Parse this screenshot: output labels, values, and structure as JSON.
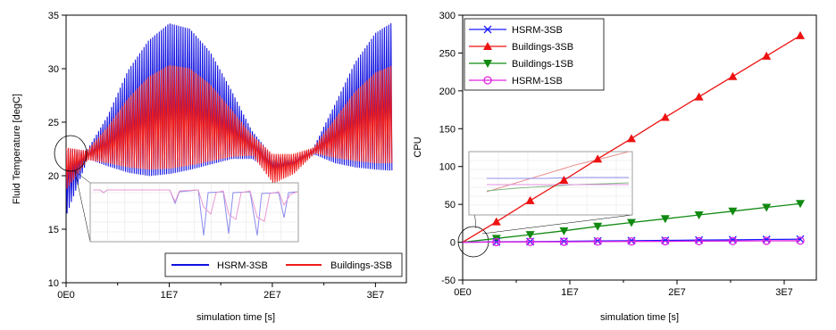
{
  "chart_data": [
    {
      "type": "line",
      "title": "",
      "xlabel": "simulation time [s]",
      "ylabel": "Fluid Temperature [degC]",
      "xlim": [
        0,
        33000000
      ],
      "ylim": [
        10,
        35
      ],
      "x_ticks": [
        "0E0",
        "1E7",
        "2E7",
        "3E7"
      ],
      "x_tick_values": [
        0,
        10000000,
        20000000,
        30000000
      ],
      "y_ticks": [
        "10",
        "15",
        "20",
        "25",
        "30",
        "35"
      ],
      "y_tick_values": [
        10,
        15,
        20,
        25,
        30,
        35
      ],
      "legend_position": "bottom-right",
      "grid": false,
      "series": [
        {
          "name": "HSRM-3SB",
          "color": "#1010e0",
          "envelope": {
            "x": [
              0,
              2000000,
              4000000,
              6000000,
              8000000,
              10000000,
              12000000,
              14000000,
              16000000,
              18000000,
              20000000,
              22000000,
              24000000,
              26000000,
              28000000,
              30000000,
              31500000
            ],
            "upper": [
              22.5,
              22.3,
              25.5,
              29.8,
              32.6,
              34.2,
              33.7,
              31.5,
              28.0,
              24.2,
              21.8,
              21.7,
              22.6,
              26.5,
              30.5,
              33.3,
              34.2
            ],
            "lower": [
              16.5,
              21.6,
              20.9,
              20.3,
              20.0,
              20.2,
              20.6,
              21.1,
              21.6,
              21.6,
              20.2,
              20.8,
              22.0,
              21.2,
              20.8,
              20.6,
              20.5
            ]
          }
        },
        {
          "name": "Buildings-3SB",
          "color": "#ee1c1c",
          "envelope": {
            "x": [
              0,
              2000000,
              4000000,
              6000000,
              8000000,
              10000000,
              12000000,
              14000000,
              16000000,
              18000000,
              20000000,
              22000000,
              24000000,
              26000000,
              28000000,
              30000000,
              31500000
            ],
            "upper": [
              22.6,
              22.3,
              24.5,
              27.2,
              29.2,
              30.3,
              30.0,
              28.5,
              26.2,
              23.8,
              22.0,
              22.0,
              22.6,
              25.2,
              27.8,
              29.6,
              30.2
            ],
            "lower": [
              18.8,
              21.5,
              21.2,
              20.8,
              20.6,
              20.7,
              21.0,
              21.4,
              21.8,
              21.9,
              19.3,
              20.2,
              22.1,
              21.7,
              21.4,
              21.2,
              21.2
            ]
          }
        }
      ]
    },
    {
      "type": "line",
      "title": "",
      "xlabel": "simulation time [s]",
      "ylabel": "CPU",
      "xlim": [
        0,
        33000000
      ],
      "ylim": [
        -50,
        300
      ],
      "x_ticks": [
        "0E0",
        "1E7",
        "2E7",
        "3E7"
      ],
      "x_tick_values": [
        0,
        10000000,
        20000000,
        30000000
      ],
      "y_ticks": [
        "-50",
        "0",
        "50",
        "100",
        "150",
        "200",
        "250",
        "300"
      ],
      "y_tick_values": [
        -50,
        0,
        50,
        100,
        150,
        200,
        250,
        300
      ],
      "legend_position": "top-left",
      "grid": false,
      "x": [
        0,
        3150000,
        6300000,
        9450000,
        12600000,
        15750000,
        18900000,
        22050000,
        25200000,
        28350000,
        31500000
      ],
      "series": [
        {
          "name": "HSRM-3SB",
          "color": "#1a1aff",
          "marker": "x",
          "values": [
            0,
            0.4,
            0.8,
            1.2,
            1.6,
            2.0,
            2.4,
            2.8,
            3.2,
            3.6,
            4.0
          ]
        },
        {
          "name": "Buildings-3SB",
          "color": "#ee1111",
          "marker": "triangle-up",
          "values": [
            0,
            27,
            55,
            82,
            110,
            137,
            165,
            192,
            219,
            246,
            273
          ]
        },
        {
          "name": "Buildings-1SB",
          "color": "#108a10",
          "marker": "triangle-down",
          "values": [
            0,
            5,
            10,
            15,
            21,
            26,
            31,
            36,
            41,
            46,
            51
          ]
        },
        {
          "name": "HSRM-1SB",
          "color": "#e020e0",
          "marker": "circle",
          "values": [
            0,
            0.2,
            0.4,
            0.6,
            0.8,
            1.0,
            1.2,
            1.4,
            1.6,
            1.8,
            2.0
          ]
        }
      ]
    }
  ]
}
